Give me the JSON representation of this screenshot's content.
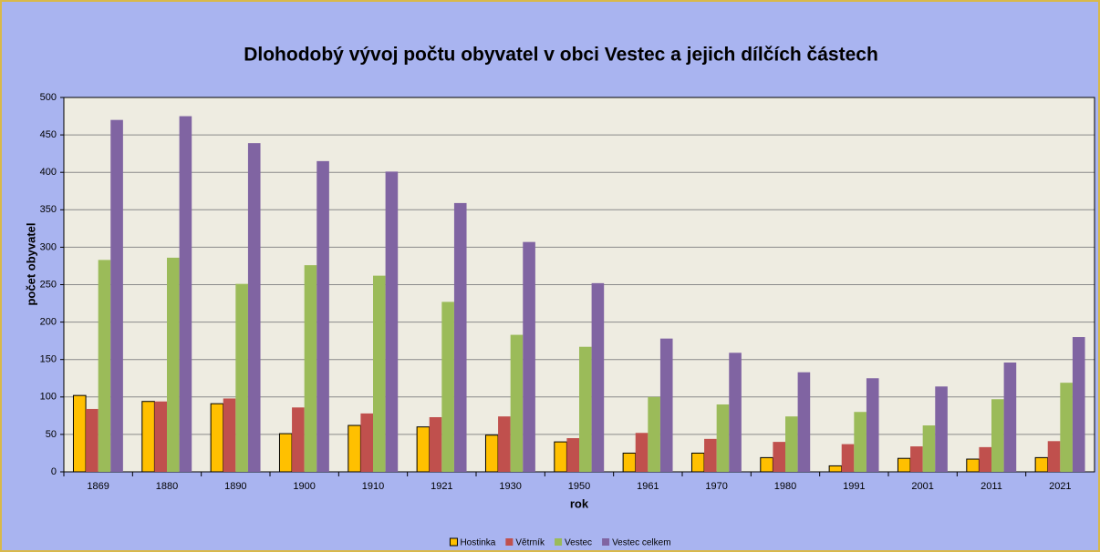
{
  "chart_data": {
    "type": "bar",
    "title": "Dlohodobý vývoj počtu obyvatel v obci Vestec a jejich dílčích částech",
    "x_label": "rok",
    "y_label": "počet obyvatel",
    "categories": [
      "1869",
      "1880",
      "1890",
      "1900",
      "1910",
      "1921",
      "1930",
      "1950",
      "1961",
      "1970",
      "1980",
      "1991",
      "2001",
      "2011",
      "2021"
    ],
    "series": [
      {
        "name": "Hostinka",
        "color": "#ffc000",
        "values": [
          102,
          94,
          91,
          51,
          62,
          60,
          49,
          40,
          25,
          25,
          19,
          8,
          18,
          17,
          19
        ]
      },
      {
        "name": "Větrník",
        "color": "#c0504d",
        "values": [
          84,
          94,
          98,
          86,
          78,
          73,
          74,
          45,
          52,
          44,
          40,
          37,
          34,
          33,
          41
        ]
      },
      {
        "name": "Vestec",
        "color": "#9bbb59",
        "values": [
          283,
          286,
          251,
          276,
          262,
          227,
          183,
          167,
          100,
          90,
          74,
          80,
          62,
          97,
          119
        ]
      },
      {
        "name": "Vestec celkem",
        "color": "#8064a2",
        "values": [
          470,
          475,
          439,
          415,
          401,
          359,
          307,
          252,
          178,
          159,
          133,
          125,
          114,
          146,
          180
        ]
      }
    ],
    "ylim": [
      0,
      500
    ],
    "yticks": [
      0,
      50,
      100,
      150,
      200,
      250,
      300,
      350,
      400,
      450,
      500
    ],
    "grid": true,
    "legend": "bottom"
  }
}
